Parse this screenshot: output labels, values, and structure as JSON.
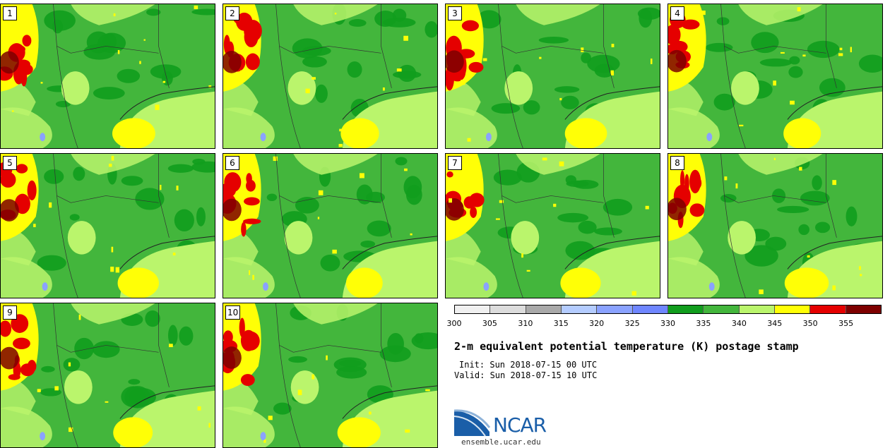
{
  "stamps": [
    "1",
    "2",
    "3",
    "4",
    "5",
    "6",
    "7",
    "8",
    "9",
    "10"
  ],
  "colorbar": {
    "ticks": [
      "300",
      "305",
      "310",
      "315",
      "320",
      "325",
      "330",
      "335",
      "340",
      "345",
      "350",
      "355"
    ],
    "colors": [
      "#f0f0f0",
      "#dcdcdc",
      "#a9a9a9",
      "#b4ccff",
      "#8aa2ff",
      "#6f86ff",
      "#119d1d",
      "#43b63c",
      "#baf56c",
      "#ffff06",
      "#e50000",
      "#7e0000"
    ]
  },
  "title": "2-m equivalent potential temperature (K) postage stamp",
  "init": "Init: Sun 2018-07-15 00 UTC",
  "valid": "Valid: Sun 2018-07-15 10 UTC",
  "logo": {
    "name": "NCAR",
    "url": "ensemble.ucar.edu"
  }
}
